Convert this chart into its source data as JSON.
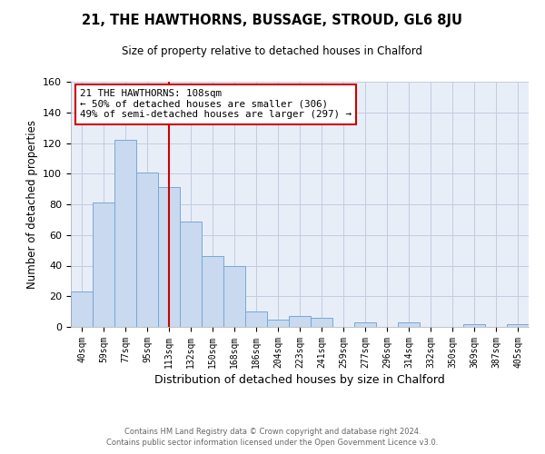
{
  "title": "21, THE HAWTHORNS, BUSSAGE, STROUD, GL6 8JU",
  "subtitle": "Size of property relative to detached houses in Chalford",
  "xlabel": "Distribution of detached houses by size in Chalford",
  "ylabel": "Number of detached properties",
  "bar_labels": [
    "40sqm",
    "59sqm",
    "77sqm",
    "95sqm",
    "113sqm",
    "132sqm",
    "150sqm",
    "168sqm",
    "186sqm",
    "204sqm",
    "223sqm",
    "241sqm",
    "259sqm",
    "277sqm",
    "296sqm",
    "314sqm",
    "332sqm",
    "350sqm",
    "369sqm",
    "387sqm",
    "405sqm"
  ],
  "bar_values": [
    23,
    81,
    122,
    101,
    91,
    69,
    46,
    40,
    10,
    5,
    7,
    6,
    0,
    3,
    0,
    3,
    0,
    0,
    2,
    0,
    2
  ],
  "bar_color": "#c8d9f0",
  "bar_edge_color": "#7aa8d0",
  "vline_x_index": 4,
  "vline_color": "#cc0000",
  "annotation_text": "21 THE HAWTHORNS: 108sqm\n← 50% of detached houses are smaller (306)\n49% of semi-detached houses are larger (297) →",
  "annotation_box_color": "#ffffff",
  "annotation_box_edge": "#cc0000",
  "ylim": [
    0,
    160
  ],
  "yticks": [
    0,
    20,
    40,
    60,
    80,
    100,
    120,
    140,
    160
  ],
  "footer_line1": "Contains HM Land Registry data © Crown copyright and database right 2024.",
  "footer_line2": "Contains public sector information licensed under the Open Government Licence v3.0.",
  "plot_bg_color": "#e8eef8",
  "grid_color": "#c0cce0"
}
